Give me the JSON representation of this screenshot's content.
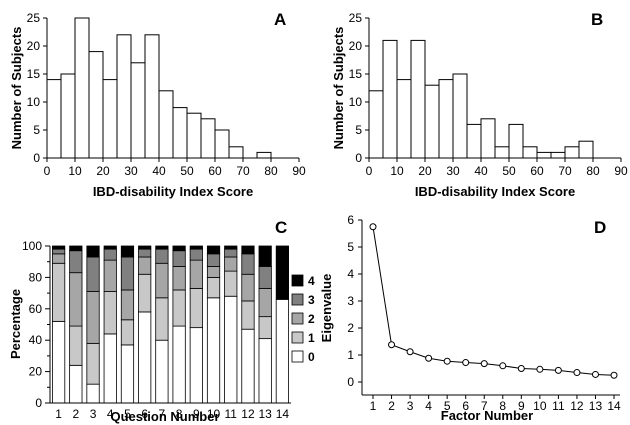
{
  "chart_data": [
    {
      "panel": "A",
      "type": "bar",
      "subtype": "histogram",
      "xlabel": "IBD-disability  Index Score",
      "ylabel": "Number of Subjects",
      "xlim": [
        0,
        90
      ],
      "ylim": [
        0,
        25
      ],
      "xticks": [
        0,
        10,
        20,
        30,
        40,
        50,
        60,
        70,
        80,
        90
      ],
      "yticks": [
        0,
        5,
        10,
        15,
        20,
        25
      ],
      "bin_width": 5,
      "bin_starts": [
        0,
        5,
        10,
        15,
        20,
        25,
        30,
        35,
        40,
        45,
        50,
        55,
        60,
        65,
        70,
        75
      ],
      "values": [
        14,
        15,
        25,
        19,
        14,
        22,
        17,
        22,
        12,
        9,
        8,
        7,
        5,
        2,
        0,
        1
      ],
      "bar_fill": "#ffffff",
      "grid": false
    },
    {
      "panel": "B",
      "type": "bar",
      "subtype": "histogram",
      "xlabel": "IBD-disability  Index Score",
      "ylabel": "Number of Subjects",
      "xlim": [
        0,
        90
      ],
      "ylim": [
        0,
        25
      ],
      "xticks": [
        0,
        10,
        20,
        30,
        40,
        50,
        60,
        70,
        80,
        90
      ],
      "yticks": [
        0,
        5,
        10,
        15,
        20,
        25
      ],
      "bin_width": 5,
      "bin_starts": [
        0,
        5,
        10,
        15,
        20,
        25,
        30,
        35,
        40,
        45,
        50,
        55,
        60,
        65,
        70,
        75
      ],
      "values": [
        12,
        21,
        14,
        21,
        13,
        14,
        15,
        6,
        7,
        2,
        6,
        2,
        1,
        1,
        2,
        3
      ],
      "bar_fill": "#ffffff",
      "grid": false
    },
    {
      "panel": "C",
      "type": "bar",
      "subtype": "stacked-100",
      "xlabel": "Question Number",
      "ylabel": "Percentage",
      "ylim": [
        0,
        100
      ],
      "yticks": [
        0,
        20,
        40,
        60,
        80,
        100
      ],
      "categories": [
        "1",
        "2",
        "3",
        "4",
        "5",
        "6",
        "7",
        "8",
        "9",
        "10",
        "11",
        "12",
        "13",
        "14"
      ],
      "series": [
        {
          "name": "0",
          "color": "#ffffff",
          "values": [
            52,
            24,
            12,
            44,
            37,
            58,
            40,
            49,
            48,
            67,
            68,
            47,
            41,
            66
          ]
        },
        {
          "name": "1",
          "color": "#c8c8c8",
          "values": [
            37,
            25,
            26,
            27,
            16,
            24,
            27,
            23,
            25,
            13,
            16,
            18,
            14,
            0
          ]
        },
        {
          "name": "2",
          "color": "#a6a6a6",
          "values": [
            6,
            34,
            33,
            20,
            19,
            11,
            22,
            15,
            18,
            7,
            9,
            17,
            18,
            0
          ]
        },
        {
          "name": "3",
          "color": "#808080",
          "values": [
            3,
            14,
            22,
            7,
            21,
            5,
            9,
            10,
            7,
            8,
            5,
            13,
            14,
            0
          ]
        },
        {
          "name": "4",
          "color": "#000000",
          "values": [
            2,
            3,
            7,
            2,
            7,
            2,
            2,
            3,
            2,
            5,
            2,
            5,
            13,
            34
          ]
        }
      ],
      "legend_order": [
        "4",
        "3",
        "2",
        "1",
        "0"
      ],
      "legend_position": "right",
      "grid": false
    },
    {
      "panel": "D",
      "type": "line",
      "xlabel": "Factor Number",
      "ylabel": "Eigenvalue",
      "xlim": [
        1,
        14
      ],
      "ylim": [
        0,
        6
      ],
      "yticks": [
        0,
        1,
        2,
        3,
        4,
        5,
        6
      ],
      "x": [
        1,
        2,
        3,
        4,
        5,
        6,
        7,
        8,
        9,
        10,
        11,
        12,
        13,
        14
      ],
      "y": [
        5.75,
        1.38,
        1.12,
        0.88,
        0.77,
        0.72,
        0.68,
        0.6,
        0.5,
        0.47,
        0.43,
        0.35,
        0.28,
        0.25
      ],
      "marker": "circle",
      "grid": false
    }
  ]
}
